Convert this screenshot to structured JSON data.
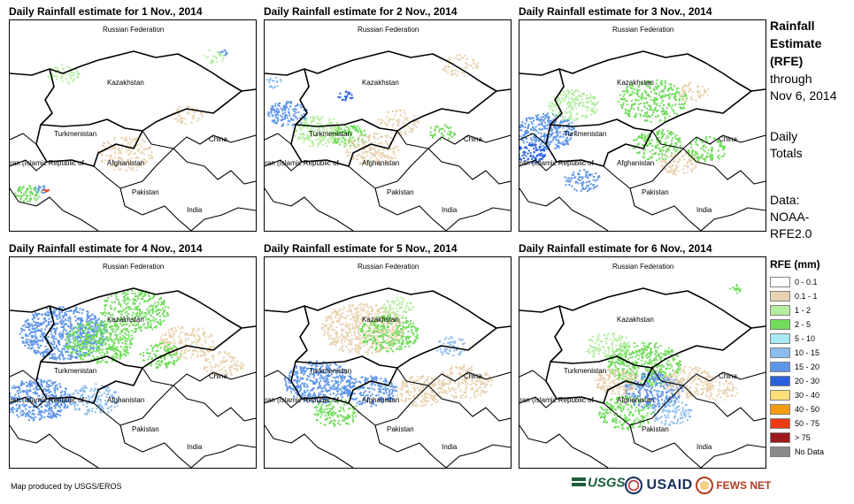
{
  "panels": [
    {
      "title": "Daily Rainfall estimate for 1 Nov., 2014"
    },
    {
      "title": "Daily Rainfall estimate for 2 Nov., 2014"
    },
    {
      "title": "Daily Rainfall estimate for 3 Nov., 2014"
    },
    {
      "title": "Daily Rainfall estimate for 4 Nov., 2014"
    },
    {
      "title": "Daily Rainfall estimate for 5 Nov., 2014"
    },
    {
      "title": "Daily Rainfall estimate for 6 Nov., 2014"
    }
  ],
  "country_labels": {
    "russia": "Russian Federation",
    "kazakhstan": "Kazakhstan",
    "turkmenistan": "Turkmenistan",
    "china": "China",
    "iran": "Iran  (Islamic Republic of",
    "afghanistan": "Afghanistan",
    "pakistan": "Pakistan",
    "india": "India"
  },
  "sidebar": {
    "heading": [
      "Rainfall",
      "Estimate",
      "(RFE)"
    ],
    "lines": [
      "through",
      "Nov 6, 2014"
    ],
    "period": [
      "Daily",
      "Totals"
    ],
    "data_source": [
      "Data:",
      "NOAA-",
      "RFE2.0"
    ]
  },
  "legend": {
    "title": "RFE (mm)",
    "items": [
      {
        "label": "0 - 0.1",
        "color": "#ffffff"
      },
      {
        "label": "0.1 - 1",
        "color": "#e8d3b0"
      },
      {
        "label": "1 - 2",
        "color": "#b5eda0"
      },
      {
        "label": "2 - 5",
        "color": "#6fdc5a"
      },
      {
        "label": "5 - 10",
        "color": "#a9e8f5"
      },
      {
        "label": "10 - 15",
        "color": "#8bbcef"
      },
      {
        "label": "15 - 20",
        "color": "#5d95e8"
      },
      {
        "label": "20 - 30",
        "color": "#2a62de"
      },
      {
        "label": "30 - 40",
        "color": "#fde07a"
      },
      {
        "label": "40 - 50",
        "color": "#f59b0f"
      },
      {
        "label": "50 - 75",
        "color": "#ee3b15"
      },
      {
        "label": "> 75",
        "color": "#9d1a1a"
      },
      {
        "label": "No Data",
        "color": "#8a8a8a"
      }
    ]
  },
  "footer": {
    "credit": "Map produced by USGS/EROS",
    "logo_usgs": "USGS",
    "logo_usaid": "USAID",
    "logo_fews": "FEWS NET"
  }
}
